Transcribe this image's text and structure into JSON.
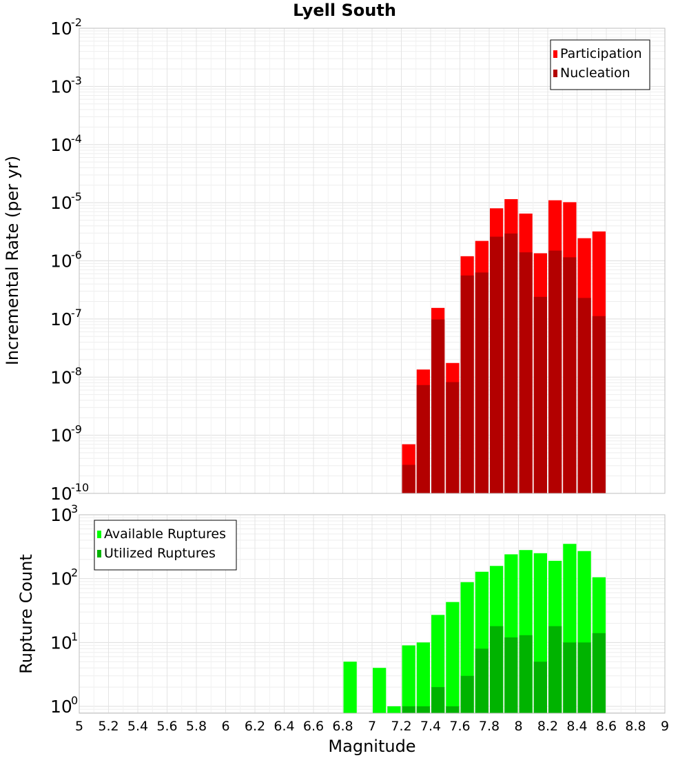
{
  "chart_data": [
    {
      "type": "bar",
      "title": "Lyell South",
      "xlabel": "",
      "ylabel": "Incremental Rate (per yr)",
      "yscale": "log",
      "ylim": [
        1e-10,
        0.01
      ],
      "xlim": [
        5,
        9
      ],
      "y_ticks": [
        {
          "base": "10",
          "exp": "-10",
          "value": 1e-10
        },
        {
          "base": "10",
          "exp": "-9",
          "value": 1e-09
        },
        {
          "base": "10",
          "exp": "-8",
          "value": 1e-08
        },
        {
          "base": "10",
          "exp": "-7",
          "value": 1e-07
        },
        {
          "base": "10",
          "exp": "-6",
          "value": 1e-06
        },
        {
          "base": "10",
          "exp": "-5",
          "value": 1e-05
        },
        {
          "base": "10",
          "exp": "-4",
          "value": 0.0001
        },
        {
          "base": "10",
          "exp": "-3",
          "value": 0.001
        },
        {
          "base": "10",
          "exp": "-2",
          "value": 0.01
        }
      ],
      "legend": "top-right",
      "grid": true,
      "bar_width": 0.1,
      "x": [
        7.25,
        7.35,
        7.45,
        7.55,
        7.65,
        7.75,
        7.85,
        7.95,
        8.05,
        8.15,
        8.25,
        8.35,
        8.45,
        8.55
      ],
      "series": [
        {
          "name": "Participation",
          "color": "#ff0000",
          "values": [
            7e-10,
            1.35e-08,
            1.55e-07,
            1.75e-08,
            1.2e-06,
            2.2e-06,
            8e-06,
            1.15e-05,
            6.5e-06,
            1.35e-06,
            1.1e-05,
            1.02e-05,
            2.45e-06,
            3.2e-06
          ]
        },
        {
          "name": "Nucleation",
          "color": "#b30000",
          "values": [
            3.1e-10,
            7.3e-09,
            9.8e-08,
            8.2e-09,
            5.6e-07,
            6.3e-07,
            2.6e-06,
            2.95e-06,
            1.4e-06,
            2.4e-07,
            1.5e-06,
            1.15e-06,
            2.3e-07,
            1.12e-07
          ]
        }
      ]
    },
    {
      "type": "bar",
      "title": "",
      "xlabel": "Magnitude",
      "ylabel": "Rupture Count",
      "yscale": "log",
      "ylim": [
        0.78,
        1000
      ],
      "xlim": [
        5,
        9
      ],
      "x_ticks": [
        "5",
        "5.2",
        "5.4",
        "5.6",
        "5.8",
        "6",
        "6.2",
        "6.4",
        "6.6",
        "6.8",
        "7",
        "7.2",
        "7.4",
        "7.6",
        "7.8",
        "8",
        "8.2",
        "8.4",
        "8.6",
        "8.8",
        "9"
      ],
      "y_ticks": [
        {
          "base": "10",
          "exp": "0",
          "value": 1
        },
        {
          "base": "10",
          "exp": "1",
          "value": 10
        },
        {
          "base": "10",
          "exp": "2",
          "value": 100
        },
        {
          "base": "10",
          "exp": "3",
          "value": 1000
        }
      ],
      "legend": "top-left",
      "grid": true,
      "bar_width": 0.1,
      "x": [
        6.85,
        7.05,
        7.15,
        7.25,
        7.35,
        7.45,
        7.55,
        7.65,
        7.75,
        7.85,
        7.95,
        8.05,
        8.15,
        8.25,
        8.35,
        8.45,
        8.55
      ],
      "series": [
        {
          "name": "Available Ruptures",
          "color": "#00ff00",
          "values": [
            5,
            4,
            1,
            9,
            10,
            27,
            43,
            88,
            128,
            158,
            240,
            280,
            250,
            190,
            350,
            270,
            105
          ]
        },
        {
          "name": "Utilized Ruptures",
          "color": "#00b300",
          "values": [
            0,
            0,
            0,
            1,
            1,
            2,
            1,
            3,
            8,
            18,
            12,
            13,
            5,
            18,
            10,
            10,
            14
          ]
        }
      ]
    }
  ]
}
